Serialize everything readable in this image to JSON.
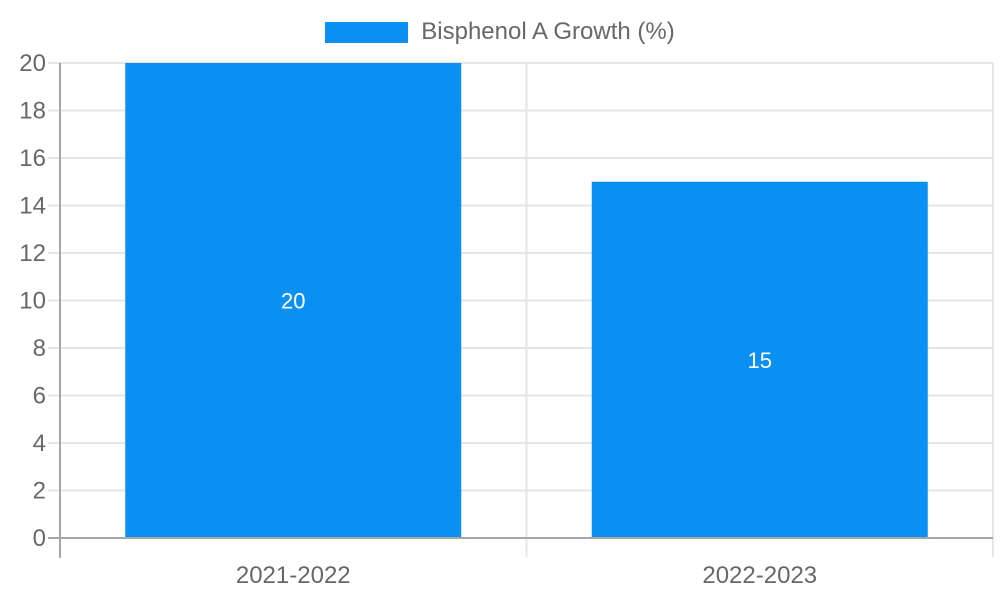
{
  "chart_data": {
    "type": "bar",
    "title": "",
    "categories": [
      "2021-2022",
      "2022-2023"
    ],
    "series": [
      {
        "name": "Bisphenol A Growth (%)",
        "values": [
          20,
          15
        ]
      }
    ],
    "value_labels": [
      "20",
      "15"
    ],
    "xlabel": "",
    "ylabel": "",
    "ylim": [
      0,
      20
    ],
    "yticks": [
      0,
      2,
      4,
      6,
      8,
      10,
      12,
      14,
      16,
      18,
      20
    ],
    "grid": true,
    "legend_position": "top",
    "colors": {
      "bar": "#0a90f3",
      "axis": "#a6a6a6",
      "grid": "#e6e6e6",
      "tick_text": "#686868",
      "value_label": "#ffffff"
    }
  }
}
